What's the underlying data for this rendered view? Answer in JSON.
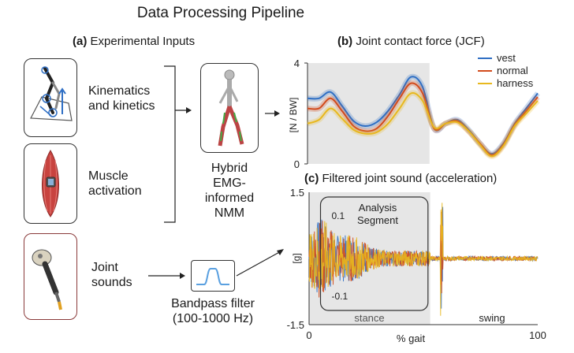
{
  "title": "Data Processing Pipeline",
  "section_a": {
    "letter": "(a)",
    "text": "Experimental Inputs"
  },
  "section_b": {
    "letter": "(b)",
    "text": "Joint contact force (JCF)"
  },
  "section_c": {
    "letter": "(c)",
    "text": "Filtered joint sound (acceleration)"
  },
  "inputs": {
    "kinematics_line1": "Kinematics",
    "kinematics_line2": "and kinetics",
    "muscle_line1": "Muscle",
    "muscle_line2": "activation",
    "joint_line1": "Joint",
    "joint_line2": "sounds"
  },
  "model": {
    "line1": "Hybrid",
    "line2": "EMG-",
    "line3": "informed",
    "line4": "NMM"
  },
  "filter": {
    "line1": "Bandpass filter",
    "line2": "(100-1000 Hz)"
  },
  "chart_data": [
    {
      "type": "line",
      "title": "Joint contact force (JCF)",
      "ylabel": "[N / BW]",
      "xlabel": "",
      "ylim": [
        0,
        4
      ],
      "xlim": [
        0,
        100
      ],
      "yticks": [
        "0",
        "4"
      ],
      "stance_shading": [
        0,
        53
      ],
      "legend_position": "top-right",
      "x": [
        0,
        5,
        10,
        15,
        20,
        25,
        30,
        35,
        40,
        45,
        50,
        55,
        60,
        65,
        70,
        75,
        80,
        85,
        90,
        95,
        100
      ],
      "series": [
        {
          "name": "vest",
          "color": "#2f6fc4",
          "values": [
            2.6,
            2.6,
            2.85,
            2.3,
            1.7,
            1.5,
            1.65,
            2.1,
            2.75,
            3.45,
            3.05,
            1.4,
            1.6,
            1.75,
            1.35,
            0.8,
            0.4,
            0.8,
            1.6,
            2.2,
            2.8
          ]
        },
        {
          "name": "normal",
          "color": "#d24b1c",
          "values": [
            2.2,
            2.2,
            2.6,
            2.1,
            1.5,
            1.3,
            1.4,
            1.9,
            2.6,
            3.2,
            2.8,
            1.4,
            1.6,
            1.7,
            1.3,
            0.8,
            0.35,
            0.75,
            1.55,
            2.1,
            2.65
          ]
        },
        {
          "name": "harness",
          "color": "#e8b81e",
          "values": [
            1.6,
            1.75,
            2.2,
            1.8,
            1.35,
            1.2,
            1.25,
            1.6,
            2.2,
            2.8,
            2.5,
            1.45,
            1.6,
            1.65,
            1.3,
            0.75,
            0.3,
            0.7,
            1.5,
            2.0,
            2.5
          ]
        }
      ]
    },
    {
      "type": "line",
      "title": "Filtered joint sound (acceleration)",
      "ylabel": "[g]",
      "xlabel": "% gait",
      "ylim": [
        -1.5,
        1.5
      ],
      "xlim": [
        0,
        100
      ],
      "xticks": [
        "0",
        "100"
      ],
      "yticks": [
        "1.5",
        "-1.5"
      ],
      "inset_yticks": [
        "0.1",
        "-0.1"
      ],
      "annotation": "Analysis Segment",
      "phase_labels": [
        "stance",
        "swing"
      ],
      "stance_shading": [
        0,
        53
      ],
      "series_colors": [
        "#2f6fc4",
        "#d24b1c",
        "#e8b81e"
      ]
    }
  ]
}
